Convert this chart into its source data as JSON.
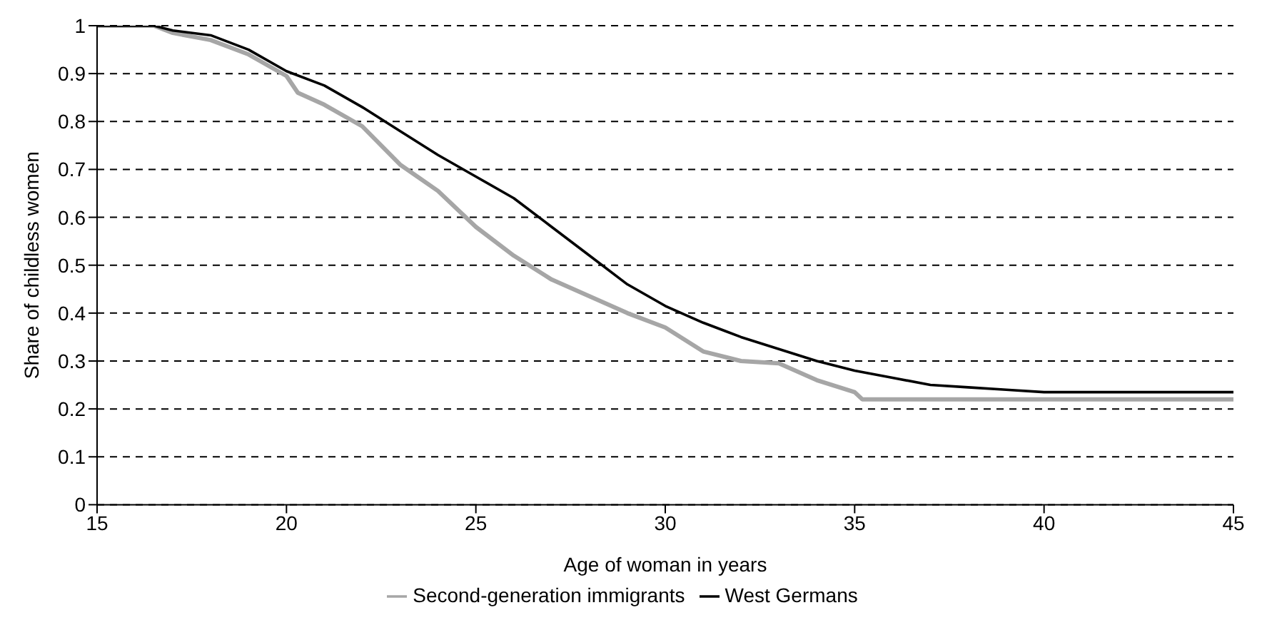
{
  "chart_data": {
    "type": "line",
    "xlabel": "Age of woman in years",
    "ylabel": "Share of childless women",
    "xlim": [
      15,
      45
    ],
    "xticks": [
      15,
      20,
      25,
      30,
      35,
      40,
      45
    ],
    "ylim": [
      0,
      1
    ],
    "yticks": [
      0,
      0.1,
      0.2,
      0.3,
      0.4,
      0.5,
      0.6,
      0.7,
      0.8,
      0.9,
      1
    ],
    "grid": "y",
    "legend": "bottom",
    "marker": "none",
    "series": [
      {
        "name": "Second-generation immigrants",
        "color": "#a6a6a6",
        "x": [
          15,
          16.5,
          17,
          18,
          19,
          20,
          20.3,
          21,
          22,
          23,
          24,
          25,
          26,
          27,
          28,
          29,
          30,
          31,
          32,
          33,
          34,
          35,
          35.2,
          45
        ],
        "values": [
          1,
          1,
          0.985,
          0.97,
          0.94,
          0.895,
          0.86,
          0.835,
          0.79,
          0.71,
          0.655,
          0.58,
          0.52,
          0.47,
          0.435,
          0.4,
          0.37,
          0.32,
          0.3,
          0.295,
          0.26,
          0.235,
          0.22,
          0.22
        ]
      },
      {
        "name": "West Germans",
        "color": "#000000",
        "x": [
          15,
          16.5,
          17,
          18,
          19,
          20,
          21,
          22,
          23,
          24,
          25,
          26,
          27,
          28,
          29,
          30,
          31,
          32,
          33,
          34,
          35,
          36,
          37,
          38,
          39,
          40,
          42,
          45
        ],
        "values": [
          1,
          1,
          0.99,
          0.98,
          0.95,
          0.905,
          0.875,
          0.83,
          0.78,
          0.73,
          0.685,
          0.64,
          0.58,
          0.52,
          0.46,
          0.415,
          0.38,
          0.35,
          0.325,
          0.3,
          0.28,
          0.265,
          0.25,
          0.245,
          0.24,
          0.235,
          0.235,
          0.235
        ]
      }
    ]
  }
}
